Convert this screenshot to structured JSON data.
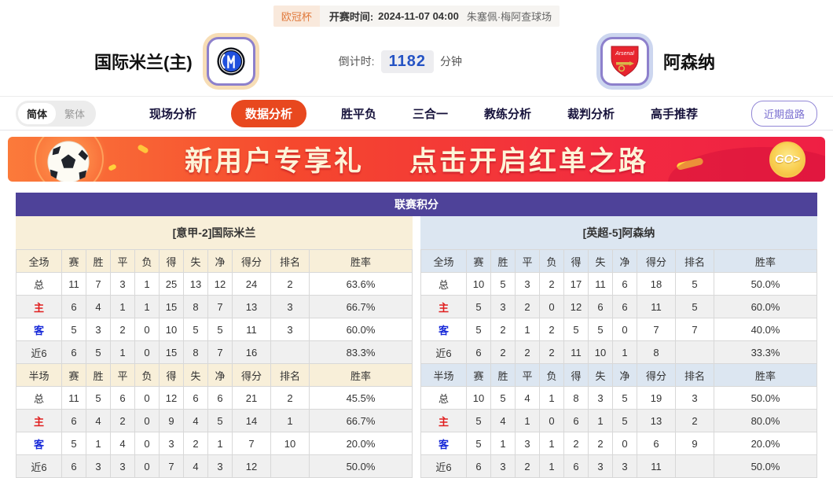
{
  "header": {
    "competition": "欧冠杯",
    "kickoff_label": "开赛时间:",
    "kickoff_value": "2024-11-07 04:00",
    "venue": "朱塞佩·梅阿查球场",
    "home_team": "国际米兰(主)",
    "away_team": "阿森纳",
    "countdown_label": "倒计时:",
    "countdown_value": "1182",
    "countdown_unit": "分钟"
  },
  "nav": {
    "lang_simplified": "简体",
    "lang_traditional": "繁体",
    "tabs": [
      {
        "label": "现场分析",
        "active": false
      },
      {
        "label": "数据分析",
        "active": true
      },
      {
        "label": "胜平负",
        "active": false
      },
      {
        "label": "三合一",
        "active": false
      },
      {
        "label": "教练分析",
        "active": false
      },
      {
        "label": "裁判分析",
        "active": false
      },
      {
        "label": "高手推荐",
        "active": false
      }
    ],
    "recent_odds_button": "近期盘路"
  },
  "banner": {
    "headline_left": "新用户专享礼",
    "headline_right": "点击开启红单之路",
    "go_label": "GO>"
  },
  "standings": {
    "title": "联赛积分",
    "columns_full": [
      "全场",
      "赛",
      "胜",
      "平",
      "负",
      "得",
      "失",
      "净",
      "得分",
      "排名",
      "胜率"
    ],
    "columns_half": [
      "半场",
      "赛",
      "胜",
      "平",
      "负",
      "得",
      "失",
      "净",
      "得分",
      "排名",
      "胜率"
    ],
    "home": {
      "header": "[意甲-2]国际米兰",
      "full": [
        {
          "label": "总",
          "style": "normal",
          "values": [
            "11",
            "7",
            "3",
            "1",
            "25",
            "13",
            "12",
            "24",
            "2",
            "63.6%"
          ]
        },
        {
          "label": "主",
          "style": "red",
          "values": [
            "6",
            "4",
            "1",
            "1",
            "15",
            "8",
            "7",
            "13",
            "3",
            "66.7%"
          ]
        },
        {
          "label": "客",
          "style": "blue",
          "values": [
            "5",
            "3",
            "2",
            "0",
            "10",
            "5",
            "5",
            "11",
            "3",
            "60.0%"
          ]
        },
        {
          "label": "近6",
          "style": "normal",
          "values": [
            "6",
            "5",
            "1",
            "0",
            "15",
            "8",
            "7",
            "16",
            "",
            "83.3%"
          ]
        }
      ],
      "half": [
        {
          "label": "总",
          "style": "normal",
          "values": [
            "11",
            "5",
            "6",
            "0",
            "12",
            "6",
            "6",
            "21",
            "2",
            "45.5%"
          ]
        },
        {
          "label": "主",
          "style": "red",
          "values": [
            "6",
            "4",
            "2",
            "0",
            "9",
            "4",
            "5",
            "14",
            "1",
            "66.7%"
          ]
        },
        {
          "label": "客",
          "style": "blue",
          "values": [
            "5",
            "1",
            "4",
            "0",
            "3",
            "2",
            "1",
            "7",
            "10",
            "20.0%"
          ]
        },
        {
          "label": "近6",
          "style": "normal",
          "values": [
            "6",
            "3",
            "3",
            "0",
            "7",
            "4",
            "3",
            "12",
            "",
            "50.0%"
          ]
        }
      ]
    },
    "away": {
      "header": "[英超-5]阿森纳",
      "full": [
        {
          "label": "总",
          "style": "normal",
          "values": [
            "10",
            "5",
            "3",
            "2",
            "17",
            "11",
            "6",
            "18",
            "5",
            "50.0%"
          ]
        },
        {
          "label": "主",
          "style": "red",
          "values": [
            "5",
            "3",
            "2",
            "0",
            "12",
            "6",
            "6",
            "11",
            "5",
            "60.0%"
          ]
        },
        {
          "label": "客",
          "style": "blue",
          "values": [
            "5",
            "2",
            "1",
            "2",
            "5",
            "5",
            "0",
            "7",
            "7",
            "40.0%"
          ]
        },
        {
          "label": "近6",
          "style": "normal",
          "values": [
            "6",
            "2",
            "2",
            "2",
            "11",
            "10",
            "1",
            "8",
            "",
            "33.3%"
          ]
        }
      ],
      "half": [
        {
          "label": "总",
          "style": "normal",
          "values": [
            "10",
            "5",
            "4",
            "1",
            "8",
            "3",
            "5",
            "19",
            "3",
            "50.0%"
          ]
        },
        {
          "label": "主",
          "style": "red",
          "values": [
            "5",
            "4",
            "1",
            "0",
            "6",
            "1",
            "5",
            "13",
            "2",
            "80.0%"
          ]
        },
        {
          "label": "客",
          "style": "blue",
          "values": [
            "5",
            "1",
            "3",
            "1",
            "2",
            "2",
            "0",
            "6",
            "9",
            "20.0%"
          ]
        },
        {
          "label": "近6",
          "style": "normal",
          "values": [
            "6",
            "3",
            "2",
            "1",
            "6",
            "3",
            "3",
            "11",
            "",
            "50.0%"
          ]
        }
      ]
    }
  },
  "colors": {
    "accent_purple": "#4e4299",
    "active_tab_orange": "#e8481f",
    "home_panel_cream": "#f8efd9",
    "away_panel_blue": "#dce6f1",
    "countdown_blue": "#2553c4",
    "row_home_red": "#e01e1e",
    "row_away_blue": "#1628d8"
  }
}
